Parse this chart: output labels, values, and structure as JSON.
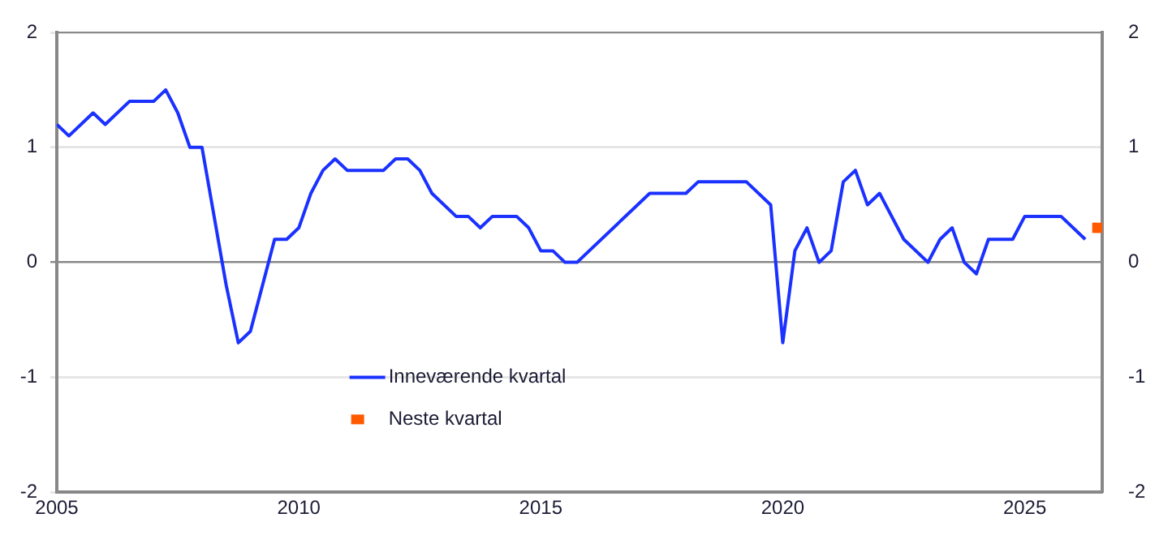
{
  "chart_data": {
    "type": "line",
    "xlim": [
      2005,
      2026.6
    ],
    "xticks": [
      2005,
      2010,
      2015,
      2020,
      2025
    ],
    "ylim": [
      -2,
      2
    ],
    "yticks": [
      -2,
      -1,
      0,
      1,
      2
    ],
    "y2lim": [
      -2,
      2
    ],
    "y2ticks": [
      -2,
      -1,
      0,
      1,
      2
    ],
    "grid": "y",
    "legend": "bottom left",
    "series": [
      {
        "name": "Inneværende kvartal",
        "color": "#1a31ff",
        "marker": "none",
        "x": [
          2005,
          2005.25,
          2005.75,
          2006,
          2006.5,
          2007,
          2007.25,
          2007.5,
          2007.75,
          2008,
          2008.5,
          2008.75,
          2009,
          2009.5,
          2009.75,
          2010,
          2010.25,
          2010.5,
          2010.75,
          2011,
          2011.75,
          2012,
          2012.25,
          2012.5,
          2012.75,
          2013.25,
          2013.5,
          2013.75,
          2014,
          2014.5,
          2014.75,
          2015,
          2015.25,
          2015.5,
          2015.75,
          2017.25,
          2018,
          2018.25,
          2019.25,
          2019.75,
          2020,
          2020.25,
          2020.5,
          2020.75,
          2021,
          2021.25,
          2021.5,
          2021.75,
          2022,
          2022.5,
          2023,
          2023.25,
          2023.5,
          2023.75,
          2024,
          2024.25,
          2024.75,
          2025,
          2025.75,
          2026.25
        ],
        "values": [
          1.2,
          1.1,
          1.3,
          1.2,
          1.4,
          1.4,
          1.5,
          1.3,
          1.0,
          1.0,
          -0.2,
          -0.7,
          -0.6,
          0.2,
          0.2,
          0.3,
          0.6,
          0.8,
          0.9,
          0.8,
          0.8,
          0.9,
          0.9,
          0.8,
          0.6,
          0.4,
          0.4,
          0.3,
          0.4,
          0.4,
          0.3,
          0.1,
          0.1,
          0.0,
          0.0,
          0.6,
          0.6,
          0.7,
          0.7,
          0.5,
          -0.7,
          0.1,
          0.3,
          0.0,
          0.1,
          0.7,
          0.8,
          0.5,
          0.6,
          0.2,
          0.0,
          0.2,
          0.3,
          0.0,
          -0.1,
          0.2,
          0.2,
          0.4,
          0.4,
          0.2
        ]
      },
      {
        "name": "Neste kvartal",
        "type": "scatter",
        "color": "#ff5a00",
        "marker": "square",
        "x": [
          2026.5
        ],
        "values": [
          0.3
        ]
      }
    ]
  }
}
